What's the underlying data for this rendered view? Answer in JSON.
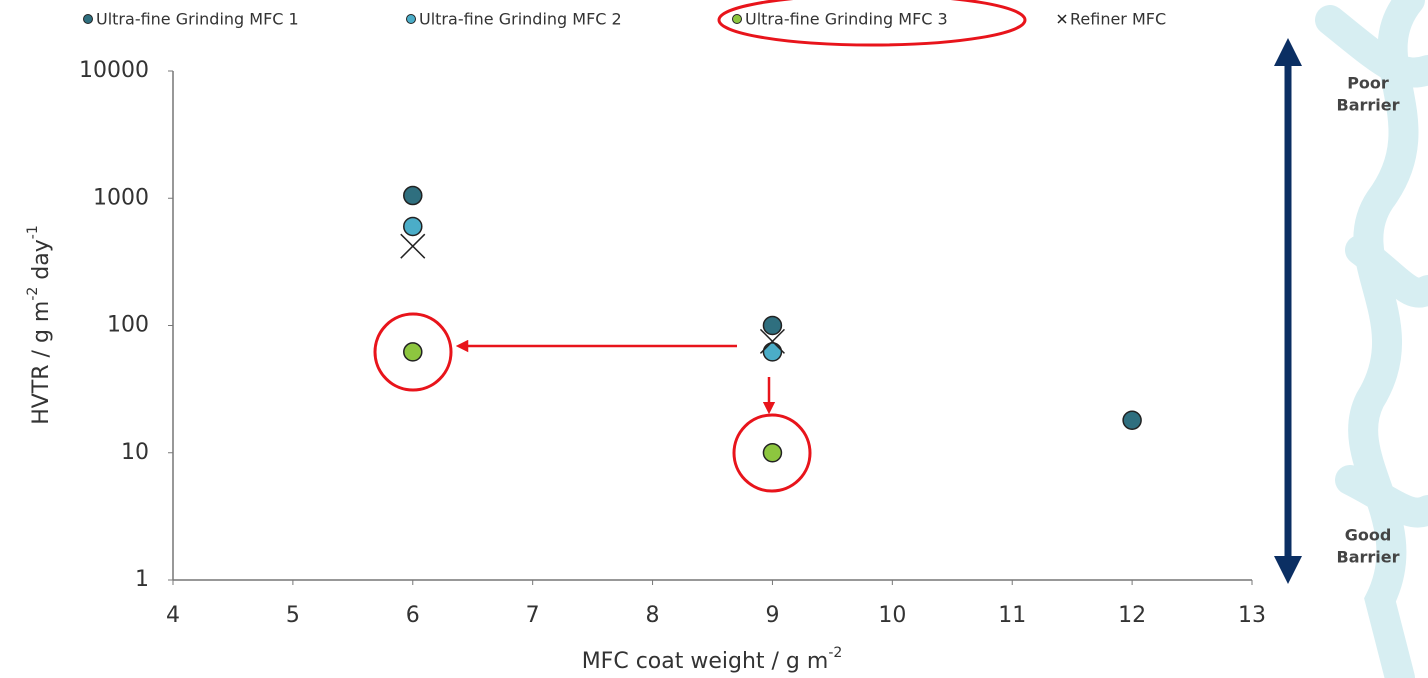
{
  "chart_data": {
    "type": "scatter",
    "xlabel": [
      "MFC coat weight / g m",
      "-2"
    ],
    "ylabel": [
      "HVTR / g m",
      "-2",
      " day",
      "-1"
    ],
    "xlim": [
      4,
      13
    ],
    "xticks": [
      4,
      5,
      6,
      7,
      8,
      9,
      10,
      11,
      12,
      13
    ],
    "ylim": [
      1,
      10000
    ],
    "yticks": [
      1,
      10,
      100,
      1000,
      10000
    ],
    "log_y": true,
    "grid": false,
    "legend": "top",
    "series": [
      {
        "name": "Ultra-fine Grinding MFC 1",
        "color": "#2f6f7f",
        "marker": "o",
        "x": [
          6,
          9,
          12
        ],
        "values": [
          1050,
          100,
          18
        ]
      },
      {
        "name": "Ultra-fine Grinding MFC 2",
        "color": "#4badc8",
        "marker": "o",
        "x": [
          6,
          9
        ],
        "values": [
          600,
          62
        ]
      },
      {
        "name": "Ultra-fine Grinding MFC 3",
        "color": "#8dc63f",
        "marker": "o",
        "x": [
          6,
          9
        ],
        "values": [
          62,
          10
        ]
      },
      {
        "name": "Refiner MFC",
        "color": "#222222",
        "marker": "x",
        "x": [
          6,
          9
        ],
        "values": [
          420,
          75
        ]
      }
    ],
    "annotations": [
      {
        "lines": [
          "Poor",
          "Barrier"
        ]
      },
      {
        "lines": [
          "Good",
          "Barrier"
        ]
      }
    ]
  }
}
